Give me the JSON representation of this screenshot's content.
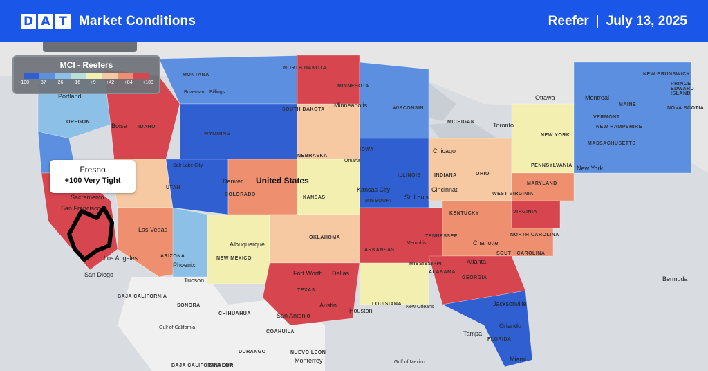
{
  "header": {
    "logo_letters": [
      "D",
      "A",
      "T"
    ],
    "title": "Market Conditions",
    "equipment": "Reefer",
    "separator": "|",
    "date": "July 13, 2025",
    "background": "#1a56e8"
  },
  "legend": {
    "title": "MCI - Reefers",
    "ticks": [
      "-100",
      "-37",
      "-26",
      "-16",
      "+9",
      "+42",
      "+84",
      "+100"
    ],
    "colors": [
      "#2f5fd1",
      "#5c8fe0",
      "#8cc0e6",
      "#b8e0d8",
      "#f3efb0",
      "#f6c9a2",
      "#ee8f6f",
      "#d7454e"
    ]
  },
  "callout": {
    "market": "Fresno",
    "value_text": "+100 Very Tight",
    "value": 100
  },
  "map_labels": {
    "country": "United States",
    "cities": [
      "Portland",
      "Boise",
      "Bozeman",
      "Billings",
      "Minneapolis",
      "Ottawa",
      "Montreal",
      "Toronto",
      "Chicago",
      "Omaha",
      "Salt Lake City",
      "Sacramento",
      "San Francisco",
      "Fresno",
      "Las Vegas",
      "Los Angeles",
      "San Diego",
      "Phoenix",
      "Tucson",
      "Denver",
      "Albuquerque",
      "Kansas City",
      "St. Louis",
      "Cincinnati",
      "New York",
      "Memphis",
      "Charlotte",
      "Atlanta",
      "Fort Worth",
      "Dallas",
      "Austin",
      "San Antonio",
      "Houston",
      "New Orleans",
      "Jacksonville",
      "Orlando",
      "Tampa",
      "Miami",
      "Monterrey",
      "Bermuda"
    ],
    "regions": [
      "MONTANA",
      "NORTH DAKOTA",
      "SOUTH DAKOTA",
      "WYOMING",
      "IDAHO",
      "OREGON",
      "UTAH",
      "COLORADO",
      "NEBRASKA",
      "KANSAS",
      "IOWA",
      "ILLINOIS",
      "INDIANA",
      "OHIO",
      "MISSOURI",
      "KENTUCKY",
      "TENNESSEE",
      "ARKANSAS",
      "OKLAHOMA",
      "TEXAS",
      "LOUISIANA",
      "MISSISSIPPI",
      "ALABAMA",
      "GEORGIA",
      "FLORIDA",
      "NEW MEXICO",
      "ARIZONA",
      "MINNESOTA",
      "WISCONSIN",
      "MICHIGAN",
      "PENNSYLVANIA",
      "NEW YORK",
      "VERMONT",
      "MAINE",
      "NEW HAMPSHIRE",
      "MASSACHUSETTS",
      "MARYLAND",
      "WEST VIRGINIA",
      "VIRGINIA",
      "NORTH CAROLINA",
      "SOUTH CAROLINA",
      "NEW BRUNSWICK",
      "PRINCE EDWARD ISLAND",
      "NOVA SCOTIA",
      "SONORA",
      "CHIHUAHUA",
      "COAHUILA",
      "NUEVO LEON",
      "SINALOA",
      "DURANGO",
      "BAJA CALIFORNIA",
      "BAJA CALIFORNIA SUR",
      "Gulf of Mexico",
      "Gulf of California"
    ]
  }
}
